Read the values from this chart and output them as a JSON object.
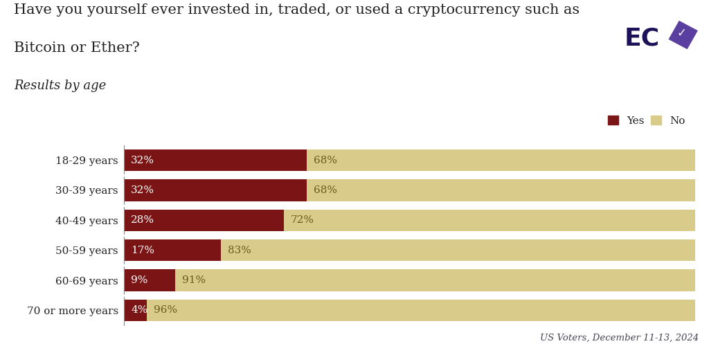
{
  "title_line1": "Have you yourself ever invested in, traded, or used a cryptocurrency such as",
  "title_line2": "Bitcoin or Ether?",
  "subtitle": "Results by age",
  "categories": [
    "18-29 years",
    "30-39 years",
    "40-49 years",
    "50-59 years",
    "60-69 years",
    "70 or more years"
  ],
  "yes_values": [
    32,
    32,
    28,
    17,
    9,
    4
  ],
  "no_values": [
    68,
    68,
    72,
    83,
    91,
    96
  ],
  "yes_color": "#7B1515",
  "no_color": "#D9CC8A",
  "background_color": "#FFFFFF",
  "text_color": "#222222",
  "bar_label_yes_color": "#FFFFFF",
  "bar_label_no_color": "#6B5A1A",
  "source_color": "#444455",
  "label_fontsize": 11,
  "title_fontsize": 15,
  "subtitle_fontsize": 13,
  "source_text": "US Voters, December 11-13, 2024",
  "legend_yes": "Yes",
  "legend_no": "No",
  "bar_height": 0.72,
  "bar_gap": 0.28
}
